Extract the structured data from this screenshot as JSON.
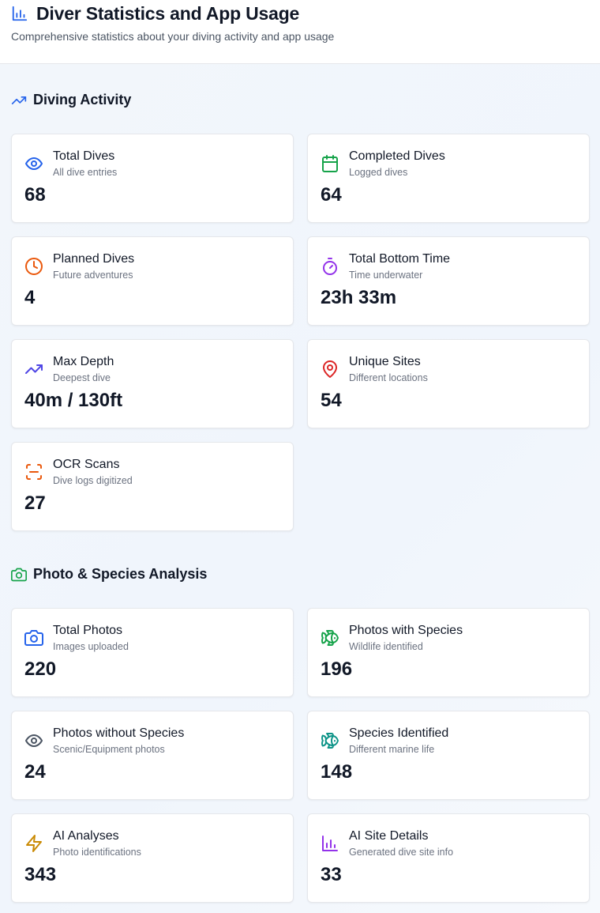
{
  "header": {
    "title": "Diver Statistics and App Usage",
    "subtitle": "Comprehensive statistics about your diving activity and app usage",
    "icon": "bar-chart-icon"
  },
  "sections": [
    {
      "title": "Diving Activity",
      "icon": "trending-up-icon",
      "cards": [
        {
          "title": "Total Dives",
          "desc": "All dive entries",
          "value": "68",
          "icon": "eye-icon",
          "color": "#2563eb"
        },
        {
          "title": "Completed Dives",
          "desc": "Logged dives",
          "value": "64",
          "icon": "calendar-icon",
          "color": "#16a34a"
        },
        {
          "title": "Planned Dives",
          "desc": "Future adventures",
          "value": "4",
          "icon": "clock-icon",
          "color": "#ea580c"
        },
        {
          "title": "Total Bottom Time",
          "desc": "Time underwater",
          "value": "23h 33m",
          "icon": "timer-icon",
          "color": "#9333ea"
        },
        {
          "title": "Max Depth",
          "desc": "Deepest dive",
          "value": "40m / 130ft",
          "icon": "trending-up-icon",
          "color": "#4f46e5"
        },
        {
          "title": "Unique Sites",
          "desc": "Different locations",
          "value": "54",
          "icon": "map-pin-icon",
          "color": "#dc2626"
        },
        {
          "title": "OCR Scans",
          "desc": "Dive logs digitized",
          "value": "27",
          "icon": "scan-icon",
          "color": "#ea580c"
        }
      ]
    },
    {
      "title": "Photo & Species Analysis",
      "icon": "camera-icon",
      "cards": [
        {
          "title": "Total Photos",
          "desc": "Images uploaded",
          "value": "220",
          "icon": "camera-icon",
          "color": "#2563eb"
        },
        {
          "title": "Photos with Species",
          "desc": "Wildlife identified",
          "value": "196",
          "icon": "fish-icon",
          "color": "#16a34a"
        },
        {
          "title": "Photos without Species",
          "desc": "Scenic/Equipment photos",
          "value": "24",
          "icon": "eye-icon",
          "color": "#4b5563"
        },
        {
          "title": "Species Identified",
          "desc": "Different marine life",
          "value": "148",
          "icon": "fish-icon",
          "color": "#0d9488"
        },
        {
          "title": "AI Analyses",
          "desc": "Photo identifications",
          "value": "343",
          "icon": "zap-icon",
          "color": "#ca8a04"
        },
        {
          "title": "AI Site Details",
          "desc": "Generated dive site info",
          "value": "33",
          "icon": "bar-chart-icon",
          "color": "#9333ea"
        }
      ]
    }
  ]
}
